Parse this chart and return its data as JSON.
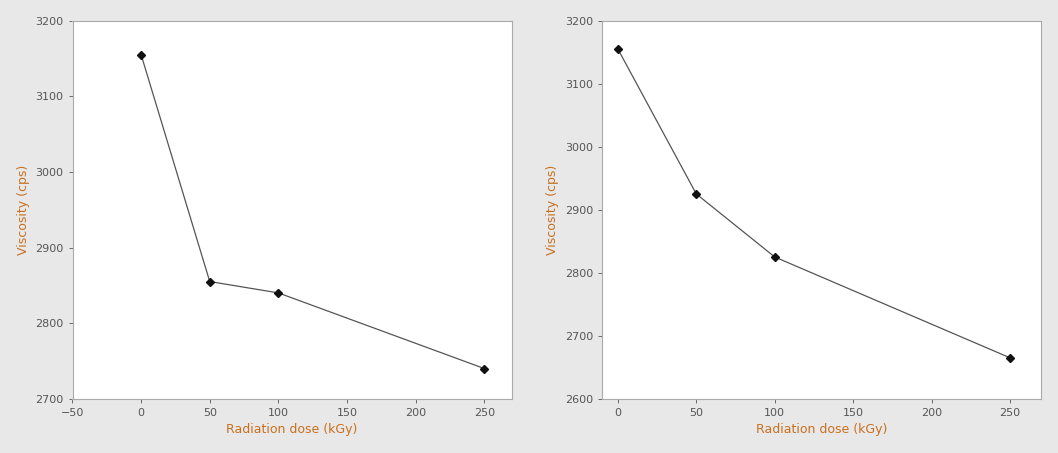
{
  "left": {
    "x": [
      0,
      50,
      100,
      250
    ],
    "y": [
      3155,
      2855,
      2840,
      2740
    ],
    "xlabel": "Radiation dose (kGy)",
    "ylabel": "Viscosity (cps)",
    "xlim": [
      -50,
      270
    ],
    "ylim": [
      2700,
      3200
    ],
    "xticks": [
      -50,
      0,
      50,
      100,
      150,
      200,
      250
    ],
    "yticks": [
      2700,
      2800,
      2900,
      3000,
      3100,
      3200
    ]
  },
  "right": {
    "x": [
      0,
      50,
      100,
      250
    ],
    "y": [
      3155,
      2925,
      2825,
      2665
    ],
    "xlabel": "Radiation dose (kGy)",
    "ylabel": "Viscosity (cps)",
    "xlim": [
      -10,
      270
    ],
    "ylim": [
      2600,
      3200
    ],
    "xticks": [
      0,
      50,
      100,
      150,
      200,
      250
    ],
    "yticks": [
      2600,
      2700,
      2800,
      2900,
      3000,
      3100,
      3200
    ]
  },
  "line_color": "#555555",
  "marker": "D",
  "marker_size": 4,
  "marker_face_color": "#111111",
  "label_font_size": 9,
  "tick_font_size": 8,
  "label_color": "#c87020",
  "tick_color": "#555555",
  "spine_color": "#aaaaaa",
  "bg_color": "#e8e8e8",
  "axes_bg_color": "#ffffff",
  "linewidth": 0.9
}
